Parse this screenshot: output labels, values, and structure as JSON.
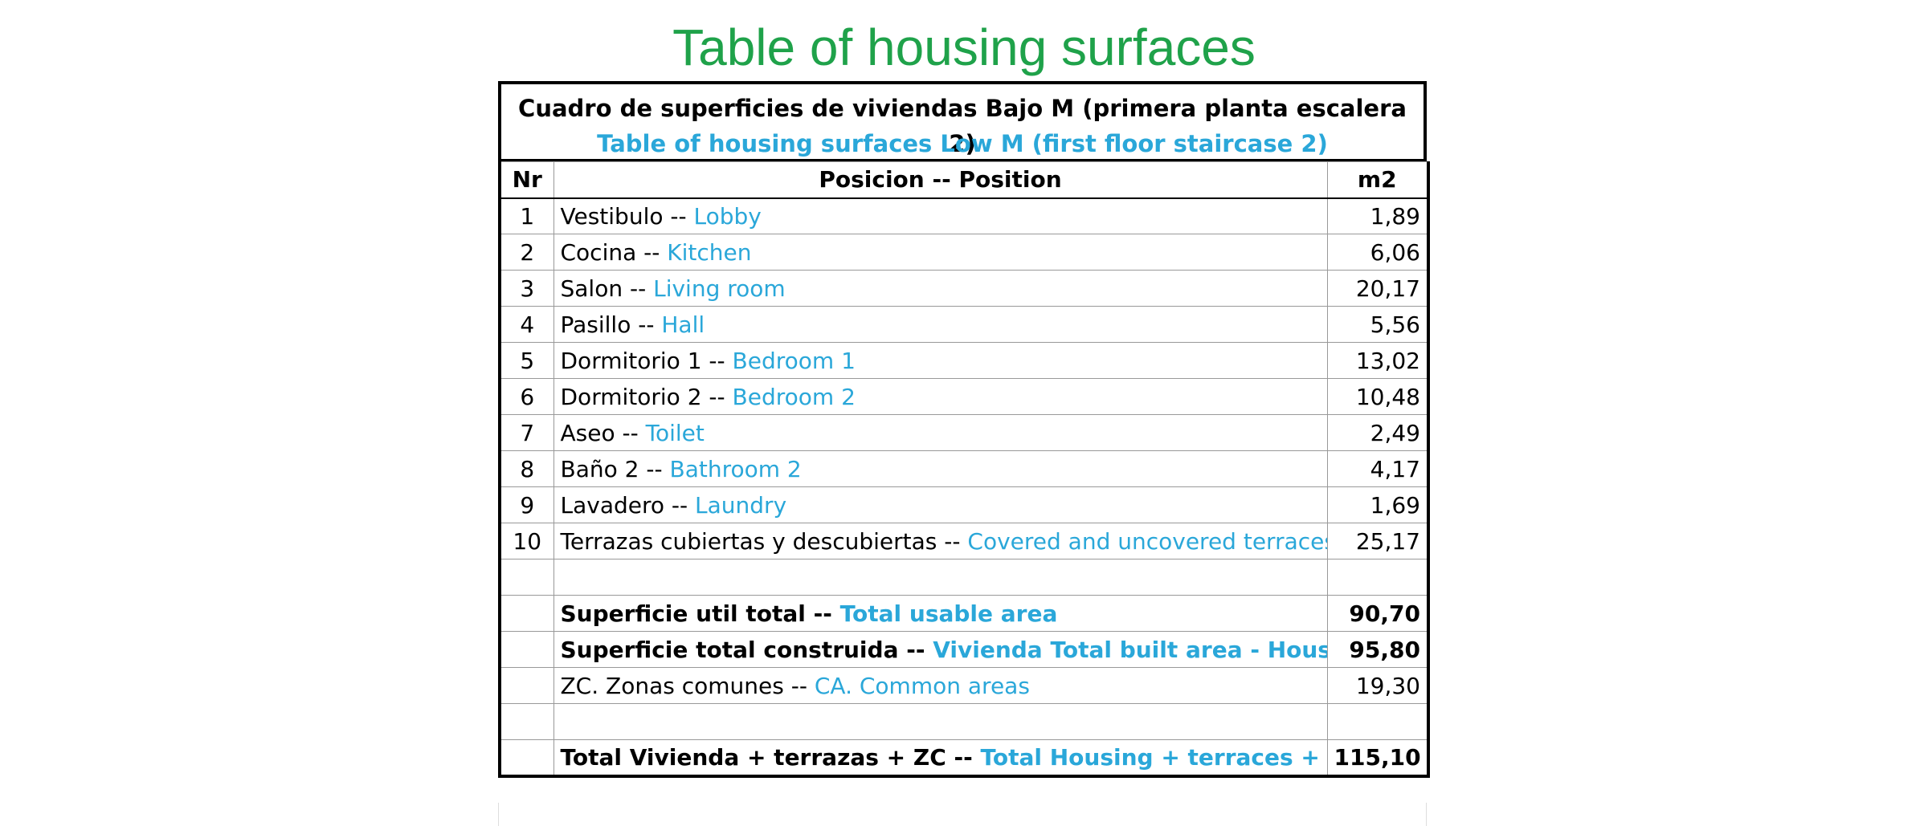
{
  "title": "Table of housing surfaces",
  "table": {
    "caption_es": "Cuadro de superficies de viviendas Bajo M (primera planta escalera 2)",
    "caption_en": "Table of housing surfaces Low M  (first floor staircase 2)",
    "columns": [
      "Nr",
      "Posicion -- Position",
      "m2"
    ],
    "rows": [
      {
        "nr": "1",
        "es": "Vestibulo --",
        "en": "Lobby",
        "m2": "1,89"
      },
      {
        "nr": "2",
        "es": "Cocina --",
        "en": "Kitchen",
        "m2": "6,06"
      },
      {
        "nr": "3",
        "es": "Salon --",
        "en": "Living room",
        "m2": "20,17"
      },
      {
        "nr": "4",
        "es": "Pasillo --",
        "en": "Hall",
        "m2": "5,56"
      },
      {
        "nr": "5",
        "es": "Dormitorio 1 --",
        "en": "Bedroom 1",
        "m2": "13,02"
      },
      {
        "nr": "6",
        "es": "Dormitorio 2 --",
        "en": "Bedroom 2",
        "m2": "10,48"
      },
      {
        "nr": "7",
        "es": "Aseo --",
        "en": "Toilet",
        "m2": "2,49"
      },
      {
        "nr": "8",
        "es": "Baño 2 --",
        "en": "Bathroom 2",
        "m2": "4,17"
      },
      {
        "nr": "9",
        "es": "Lavadero --",
        "en": "Laundry",
        "m2": "1,69"
      },
      {
        "nr": "10",
        "es": "Terrazas cubiertas y descubiertas --",
        "en": "Covered and uncovered terraces",
        "m2": "25,17"
      }
    ],
    "totals": [
      {
        "es": "Superficie util total --",
        "en": "Total usable area",
        "m2": "90,70",
        "bold": true
      },
      {
        "es": "Superficie total construida --",
        "en": "Vivienda Total built area - Housing",
        "m2": "95,80",
        "bold": true
      },
      {
        "es": "ZC. Zonas comunes  --",
        "en": "CA. Common areas",
        "m2": "19,30",
        "bold": false
      }
    ],
    "grand_total": [
      {
        "es": "Total Vivienda + terrazas + ZC  --",
        "en": "Total Housing + terraces + CA",
        "m2": "115,10",
        "bold": true
      }
    ]
  }
}
